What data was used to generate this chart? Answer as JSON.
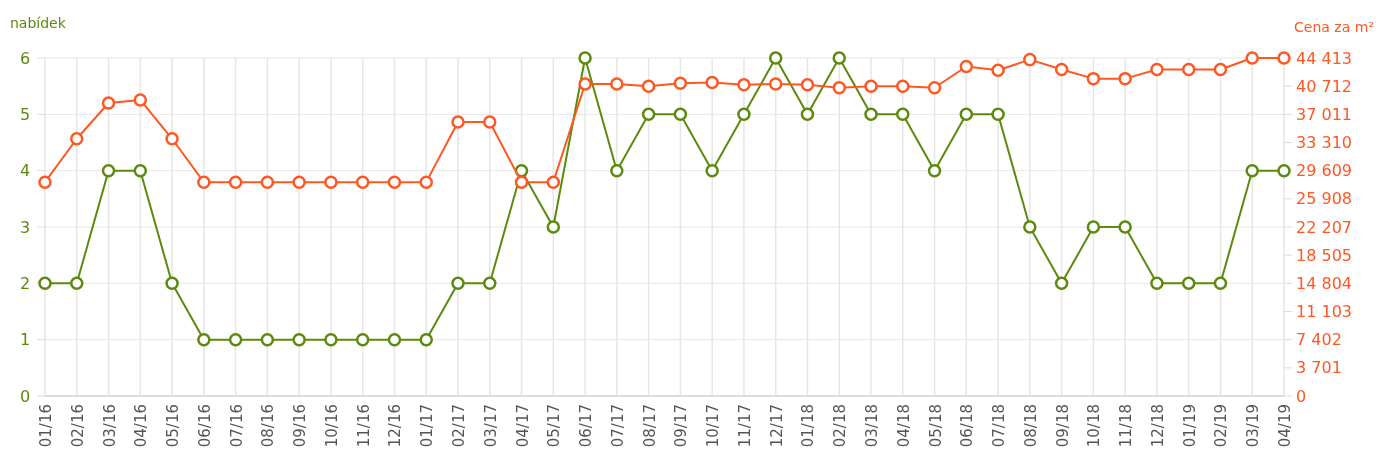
{
  "chart_data": {
    "type": "line",
    "ylabel": "nabídek",
    "y2label": "Cena za m²",
    "categories": [
      "01/16",
      "02/16",
      "03/16",
      "04/16",
      "05/16",
      "06/16",
      "07/16",
      "08/16",
      "09/16",
      "10/16",
      "11/16",
      "12/16",
      "01/17",
      "02/17",
      "03/17",
      "04/17",
      "05/17",
      "06/17",
      "07/17",
      "08/17",
      "09/17",
      "10/17",
      "11/17",
      "12/17",
      "01/18",
      "02/18",
      "03/18",
      "04/18",
      "05/18",
      "06/18",
      "07/18",
      "08/18",
      "09/18",
      "10/18",
      "11/18",
      "12/18",
      "01/19",
      "02/19",
      "03/19",
      "04/19"
    ],
    "series": [
      {
        "color": "#5b8a0e",
        "values": [
          2,
          2,
          4,
          4,
          2,
          1,
          1,
          1,
          1,
          1,
          1,
          1,
          1,
          2,
          2,
          4,
          3,
          6,
          4,
          5,
          5,
          4,
          5,
          6,
          5,
          6,
          5,
          5,
          4,
          5,
          5,
          3,
          2,
          3,
          3,
          2,
          2,
          2,
          4,
          4
        ]
      },
      {
        "color": "#ff5722",
        "axis": "y2",
        "values": [
          28100,
          33800,
          38500,
          38900,
          33800,
          28100,
          28100,
          28100,
          28100,
          28100,
          28100,
          28100,
          28100,
          36000,
          36000,
          28100,
          28100,
          41000,
          41000,
          40700,
          41100,
          41200,
          40900,
          41000,
          40900,
          40500,
          40700,
          40700,
          40500,
          43300,
          42800,
          44200,
          42900,
          41700,
          41700,
          42900,
          42900,
          42900,
          44413,
          44413
        ]
      }
    ],
    "ylim": [
      0,
      6
    ],
    "yticks": [
      0,
      1,
      2,
      3,
      4,
      5,
      6
    ],
    "y2lim": [
      0,
      44413
    ],
    "y2ticks": [
      0,
      {
        "value": 3701,
        "label": "3 701"
      },
      {
        "value": 7402,
        "label": "7 402"
      },
      {
        "value": 11103,
        "label": "11 103"
      },
      {
        "value": 14804,
        "label": "14 804"
      },
      {
        "value": 18505,
        "label": "18 505"
      },
      {
        "value": 22207,
        "label": "22 207"
      },
      {
        "value": 25908,
        "label": "25 908"
      },
      {
        "value": 29609,
        "label": "29 609"
      },
      {
        "value": 33310,
        "label": "33 310"
      },
      {
        "value": 37011,
        "label": "37 011"
      },
      {
        "value": 40712,
        "label": "40 712"
      },
      {
        "value": 44413,
        "label": "44 413"
      }
    ],
    "grid": true,
    "marker": "circle",
    "line_style": "solid"
  }
}
